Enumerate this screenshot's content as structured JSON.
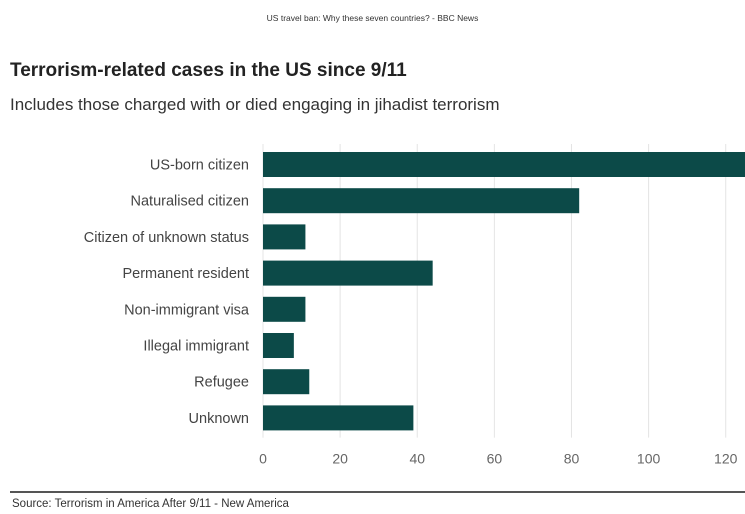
{
  "caption": "US travel ban: Why these seven countries? - BBC News",
  "source": "Source: Terrorism in America After 9/11 - New America",
  "colors": {
    "bar": "#0c4a48",
    "grid": "#e4e4e4",
    "axis_text": "#666666"
  },
  "chart_data": {
    "type": "bar",
    "orientation": "horizontal",
    "title": "Terrorism-related cases in the US since 9/11",
    "subtitle": "Includes those charged with or died engaging in jihadist terrorism",
    "categories": [
      "US-born citizen",
      "Naturalised citizen",
      "Citizen of unknown status",
      "Permanent resident",
      "Non-immigrant visa",
      "Illegal immigrant",
      "Refugee",
      "Unknown"
    ],
    "values": [
      125,
      82,
      11,
      44,
      11,
      8,
      12,
      39
    ],
    "xlim": [
      0,
      125
    ],
    "xticks": [
      0,
      20,
      40,
      60,
      80,
      100,
      120
    ],
    "grid": true
  }
}
